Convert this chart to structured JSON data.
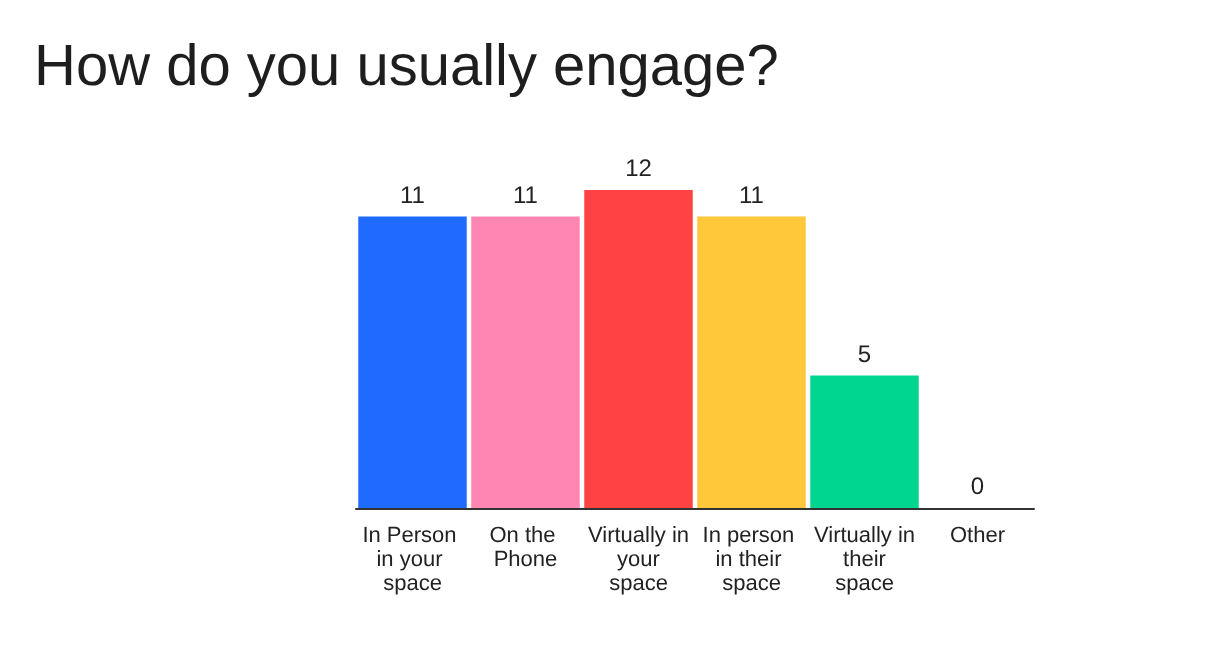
{
  "chart_data": {
    "type": "bar",
    "title": "How do you usually engage?",
    "categories": [
      "In Person in your space",
      "On the Phone",
      "Virtually in your space",
      "In person in their space",
      "Virtually in their space",
      "Other"
    ],
    "values": [
      11,
      11,
      12,
      11,
      5,
      0
    ],
    "colors": [
      "#1f6bff",
      "#ff85b3",
      "#ff4343",
      "#ffc83a",
      "#00d68f",
      "#00d68f"
    ],
    "data_labels": true
  }
}
